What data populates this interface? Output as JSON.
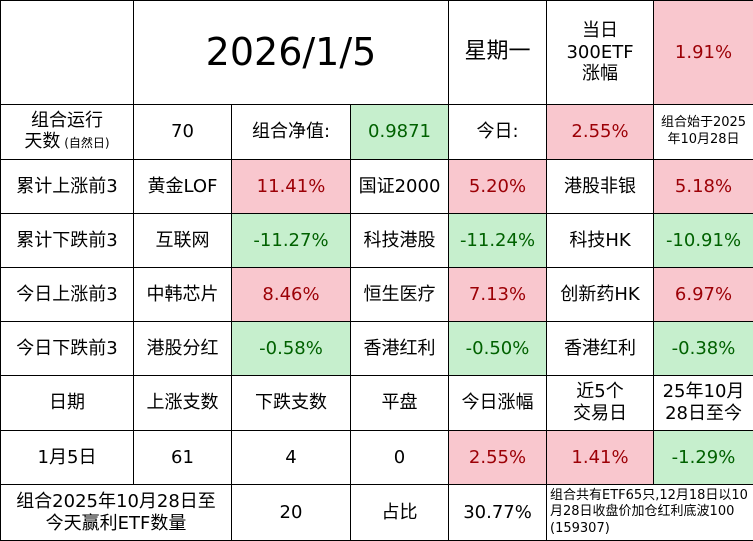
{
  "header": {
    "date": "2026/1/5",
    "weekday": "星期一",
    "etf_change_label": "当日\n300ETF\n涨幅",
    "etf_change_value": "1.91%"
  },
  "summary": {
    "days_label": "组合运行\n天数",
    "days_sub": "(自然日)",
    "days_value": "70",
    "nav_label": "组合净值:",
    "nav_value": "0.9871",
    "today_label": "今日:",
    "today_value": "2.55%",
    "start_note": "组合始于2025\n年10月28日"
  },
  "rankings": [
    {
      "label": "累计上涨前3",
      "items": [
        {
          "name": "黄金LOF",
          "value": "11.41%",
          "tone": "pink"
        },
        {
          "name": "国证2000",
          "value": "5.20%",
          "tone": "pink"
        },
        {
          "name": "港股非银",
          "value": "5.18%",
          "tone": "pink"
        }
      ]
    },
    {
      "label": "累计下跌前3",
      "items": [
        {
          "name": "互联网",
          "value": "-11.27%",
          "tone": "green"
        },
        {
          "name": "科技港股",
          "value": "-11.24%",
          "tone": "green"
        },
        {
          "name": "科技HK",
          "value": "-10.91%",
          "tone": "green"
        }
      ]
    },
    {
      "label": "今日上涨前3",
      "items": [
        {
          "name": "中韩芯片",
          "value": "8.46%",
          "tone": "pink"
        },
        {
          "name": "恒生医疗",
          "value": "7.13%",
          "tone": "pink"
        },
        {
          "name": "创新药HK",
          "value": "6.97%",
          "tone": "pink"
        }
      ]
    },
    {
      "label": "今日下跌前3",
      "items": [
        {
          "name": "港股分红",
          "value": "-0.58%",
          "tone": "green"
        },
        {
          "name": "香港红利",
          "value": "-0.50%",
          "tone": "green"
        },
        {
          "name": "香港红利",
          "value": "-0.38%",
          "tone": "green"
        }
      ]
    }
  ],
  "stats": {
    "headers": [
      "日期",
      "上涨支数",
      "下跌支数",
      "平盘",
      "今日涨幅",
      "近5个\n交易日",
      "25年10月\n28日至今"
    ],
    "row": [
      "1月5日",
      "61",
      "4",
      "0",
      "2.55%",
      "1.41%",
      "-1.29%"
    ]
  },
  "footer": {
    "label": "组合2025年10月28日至\n今天赢利ETF数量",
    "count": "20",
    "ratio_label": "占比",
    "ratio_value": "30.77%",
    "note": "组合共有ETF65只,12月18日以10月28日收盘价加仓红利底波100 (159307)"
  },
  "colors": {
    "up_bg": "#f9c7ce",
    "up_text": "#9c0006",
    "down_bg": "#c6efcd",
    "down_text": "#006100"
  }
}
